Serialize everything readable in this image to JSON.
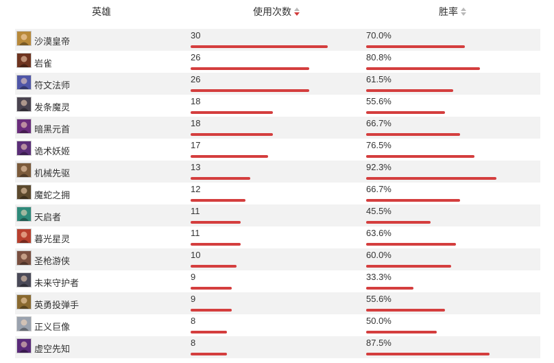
{
  "header": {
    "hero_label": "英雄",
    "uses_label": "使用次数",
    "winrate_label": "胜率"
  },
  "colors": {
    "bar": "#d43e3e",
    "row_alt": "#f2f2f2",
    "sort_active": "#d23b3b"
  },
  "rows": [
    {
      "name": "沙漠皇帝",
      "uses": "30",
      "winrate": "70.0%",
      "uses_value": 30,
      "winrate_value": 70.0,
      "avatar_color": "#b8893a"
    },
    {
      "name": "岩雀",
      "uses": "26",
      "winrate": "80.8%",
      "uses_value": 26,
      "winrate_value": 80.8,
      "avatar_color": "#6e3420"
    },
    {
      "name": "符文法师",
      "uses": "26",
      "winrate": "61.5%",
      "uses_value": 26,
      "winrate_value": 61.5,
      "avatar_color": "#4f56a8"
    },
    {
      "name": "发条魔灵",
      "uses": "18",
      "winrate": "55.6%",
      "uses_value": 18,
      "winrate_value": 55.6,
      "avatar_color": "#4a4450"
    },
    {
      "name": "暗黑元首",
      "uses": "18",
      "winrate": "66.7%",
      "uses_value": 18,
      "winrate_value": 66.7,
      "avatar_color": "#6a2c7c"
    },
    {
      "name": "诡术妖姬",
      "uses": "17",
      "winrate": "76.5%",
      "uses_value": 17,
      "winrate_value": 76.5,
      "avatar_color": "#5b2e78"
    },
    {
      "name": "机械先驱",
      "uses": "13",
      "winrate": "92.3%",
      "uses_value": 13,
      "winrate_value": 92.3,
      "avatar_color": "#7b5a3a"
    },
    {
      "name": "魔蛇之拥",
      "uses": "12",
      "winrate": "66.7%",
      "uses_value": 12,
      "winrate_value": 66.7,
      "avatar_color": "#5c4a2e"
    },
    {
      "name": "天启者",
      "uses": "11",
      "winrate": "45.5%",
      "uses_value": 11,
      "winrate_value": 45.5,
      "avatar_color": "#2e8a7a"
    },
    {
      "name": "暮光星灵",
      "uses": "11",
      "winrate": "63.6%",
      "uses_value": 11,
      "winrate_value": 63.6,
      "avatar_color": "#b8402e"
    },
    {
      "name": "圣枪游侠",
      "uses": "10",
      "winrate": "60.0%",
      "uses_value": 10,
      "winrate_value": 60.0,
      "avatar_color": "#7a5040"
    },
    {
      "name": "未来守护者",
      "uses": "9",
      "winrate": "33.3%",
      "uses_value": 9,
      "winrate_value": 33.3,
      "avatar_color": "#4a4a58"
    },
    {
      "name": "英勇投弹手",
      "uses": "9",
      "winrate": "55.6%",
      "uses_value": 9,
      "winrate_value": 55.6,
      "avatar_color": "#8a6a30"
    },
    {
      "name": "正义巨像",
      "uses": "8",
      "winrate": "50.0%",
      "uses_value": 8,
      "winrate_value": 50.0,
      "avatar_color": "#9aa2ae"
    },
    {
      "name": "虚空先知",
      "uses": "8",
      "winrate": "87.5%",
      "uses_value": 8,
      "winrate_value": 87.5,
      "avatar_color": "#5a2a7a"
    }
  ]
}
